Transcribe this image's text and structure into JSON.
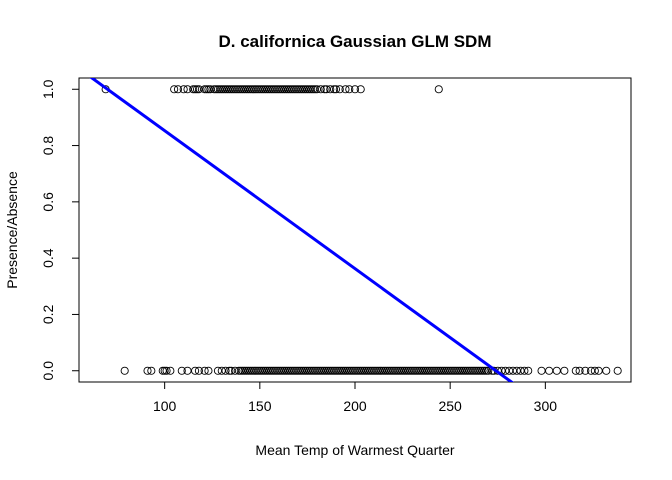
{
  "chart_data": {
    "type": "scatter",
    "title": "D. californica Gaussian GLM SDM",
    "xlabel": "Mean Temp of Warmest Quarter",
    "ylabel": "Presence/Absence",
    "xlim": [
      55,
      345
    ],
    "ylim": [
      -0.04,
      1.04
    ],
    "xticks": [
      100,
      150,
      200,
      250,
      300
    ],
    "xtick_labels": [
      "100",
      "150",
      "200",
      "250",
      "300"
    ],
    "yticks": [
      0.0,
      0.2,
      0.4,
      0.6,
      0.8,
      1.0
    ],
    "ytick_labels": [
      "0.0",
      "0.2",
      "0.4",
      "0.6",
      "0.8",
      "1.0"
    ],
    "grid": false,
    "series": [
      {
        "marker": "open-circle",
        "color": "#000000",
        "presence_x": [
          69,
          105,
          107,
          110,
          112,
          115,
          116,
          117,
          118,
          121,
          122,
          123,
          124,
          126,
          127,
          128,
          129,
          130,
          131,
          132,
          133,
          134,
          135,
          136,
          137,
          138,
          139,
          140,
          141,
          142,
          143,
          144,
          145,
          146,
          147,
          148,
          149,
          150,
          151,
          152,
          153,
          154,
          155,
          156,
          157,
          158,
          159,
          160,
          161,
          162,
          163,
          164,
          165,
          166,
          167,
          168,
          169,
          170,
          171,
          172,
          173,
          174,
          175,
          176,
          177,
          178,
          179,
          180,
          182,
          184,
          185,
          187,
          189,
          190,
          192,
          195,
          197,
          200,
          203,
          244
        ],
        "absence_x": [
          79,
          91,
          93,
          99,
          100,
          101,
          103,
          109,
          112,
          116,
          118,
          121,
          123,
          128,
          130,
          132,
          134,
          135,
          137,
          139,
          140,
          141,
          142,
          143,
          144,
          145,
          146,
          147,
          148,
          149,
          150,
          151,
          152,
          153,
          154,
          155,
          156,
          157,
          158,
          159,
          160,
          161,
          162,
          163,
          164,
          165,
          166,
          167,
          168,
          169,
          170,
          171,
          172,
          173,
          174,
          175,
          176,
          177,
          178,
          179,
          180,
          181,
          182,
          183,
          184,
          185,
          186,
          187,
          188,
          189,
          190,
          191,
          192,
          193,
          194,
          195,
          196,
          197,
          198,
          199,
          200,
          201,
          202,
          203,
          204,
          205,
          206,
          207,
          208,
          209,
          210,
          211,
          212,
          213,
          214,
          215,
          216,
          217,
          218,
          219,
          220,
          221,
          222,
          223,
          224,
          225,
          226,
          227,
          228,
          229,
          230,
          231,
          232,
          233,
          234,
          235,
          236,
          237,
          238,
          239,
          240,
          241,
          242,
          243,
          244,
          245,
          246,
          247,
          248,
          249,
          250,
          251,
          252,
          253,
          254,
          255,
          256,
          257,
          258,
          259,
          260,
          261,
          262,
          263,
          264,
          265,
          266,
          267,
          268,
          269,
          270,
          272,
          273,
          275,
          277,
          279,
          281,
          283,
          285,
          287,
          289,
          291,
          298,
          302,
          306,
          310,
          316,
          318,
          321,
          324,
          326,
          328,
          332,
          338
        ]
      }
    ],
    "fit_line": {
      "color": "#0000ff",
      "intercept": 1.343,
      "slope": -0.004901
    }
  }
}
